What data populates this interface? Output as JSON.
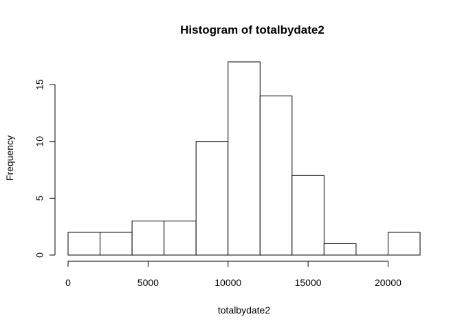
{
  "chart_data": {
    "type": "bar",
    "title": "Histogram of totalbydate2",
    "xlabel": "totalbydate2",
    "ylabel": "Frequency",
    "bins": [
      {
        "start": 0,
        "end": 2000,
        "count": 2
      },
      {
        "start": 2000,
        "end": 4000,
        "count": 2
      },
      {
        "start": 4000,
        "end": 6000,
        "count": 3
      },
      {
        "start": 6000,
        "end": 8000,
        "count": 3
      },
      {
        "start": 8000,
        "end": 10000,
        "count": 10
      },
      {
        "start": 10000,
        "end": 12000,
        "count": 17
      },
      {
        "start": 12000,
        "end": 14000,
        "count": 14
      },
      {
        "start": 14000,
        "end": 16000,
        "count": 7
      },
      {
        "start": 16000,
        "end": 18000,
        "count": 1
      },
      {
        "start": 18000,
        "end": 20000,
        "count": 0
      },
      {
        "start": 20000,
        "end": 22000,
        "count": 2
      }
    ],
    "xlim": [
      0,
      22000
    ],
    "ylim": [
      0,
      17
    ],
    "x_ticks": [
      0,
      5000,
      10000,
      15000,
      20000
    ],
    "y_ticks": [
      0,
      5,
      10,
      15
    ],
    "grid": false,
    "legend": "none"
  }
}
